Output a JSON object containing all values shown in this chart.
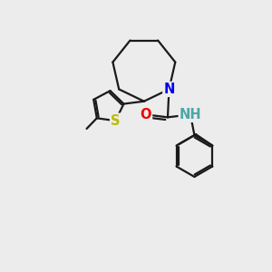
{
  "background_color": "#ececec",
  "atom_colors": {
    "N": "#0000ee",
    "O": "#ee0000",
    "S": "#bbbb00",
    "C": "#000000",
    "H": "#4da6a6"
  },
  "bond_color": "#1a1a1a",
  "bond_width": 1.6,
  "font_size_atom": 10.5,
  "figsize": [
    3.0,
    3.0
  ],
  "dpi": 100
}
